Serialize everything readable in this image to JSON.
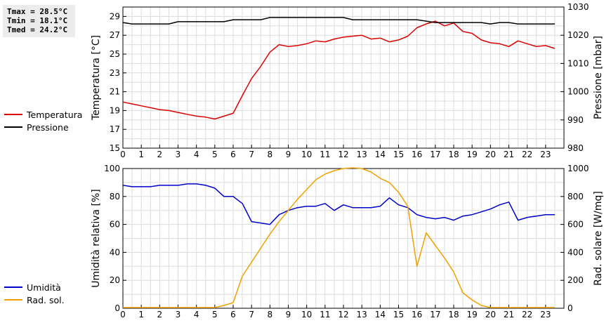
{
  "stats": {
    "tmax": "Tmax = 28.5°C",
    "tmin": "Tmin = 18.1°C",
    "tmed": "Tmed = 24.2°C"
  },
  "legend_top": [
    {
      "label": "Temperatura",
      "color": "#dd0000"
    },
    {
      "label": "Pressione",
      "color": "#000000"
    }
  ],
  "legend_bottom": [
    {
      "label": "Umidità",
      "color": "#0000cc"
    },
    {
      "label": "Rad. sol.",
      "color": "#f0a000"
    }
  ],
  "chart_data": [
    {
      "type": "line",
      "xlabel": "",
      "xlim": [
        0,
        24
      ],
      "xticks": [
        0,
        1,
        2,
        3,
        4,
        5,
        6,
        7,
        8,
        9,
        10,
        11,
        12,
        13,
        14,
        15,
        16,
        17,
        18,
        19,
        20,
        21,
        22,
        23
      ],
      "ylabel_left": "Temperatura [°C]",
      "ylim_left": [
        15,
        30
      ],
      "yticks_left": [
        15,
        17,
        19,
        21,
        23,
        25,
        27,
        29
      ],
      "ylabel_right": "Pressione [mbar]",
      "ylim_right": [
        980,
        1030
      ],
      "yticks_right": [
        980,
        990,
        1000,
        1010,
        1020,
        1030
      ],
      "grid": true,
      "series": [
        {
          "name": "Temperatura",
          "color": "#dd0000",
          "axis": "left",
          "x": [
            0,
            0.5,
            1,
            1.5,
            2,
            2.5,
            3,
            3.5,
            4,
            4.5,
            5,
            5.5,
            6,
            6.5,
            7,
            7.5,
            8,
            8.5,
            9,
            9.5,
            10,
            10.5,
            11,
            11.5,
            12,
            12.5,
            13,
            13.5,
            14,
            14.5,
            15,
            15.5,
            16,
            16.5,
            17,
            17.5,
            18,
            18.5,
            19,
            19.5,
            20,
            20.5,
            21,
            21.5,
            22,
            22.5,
            23,
            23.5
          ],
          "values": [
            19.9,
            19.7,
            19.5,
            19.3,
            19.1,
            19.0,
            18.8,
            18.6,
            18.4,
            18.3,
            18.1,
            18.4,
            18.7,
            20.6,
            22.4,
            23.7,
            25.2,
            26.0,
            25.8,
            25.9,
            26.1,
            26.4,
            26.3,
            26.6,
            26.8,
            26.9,
            27.0,
            26.6,
            26.7,
            26.3,
            26.5,
            26.9,
            27.8,
            28.2,
            28.5,
            28.0,
            28.3,
            27.4,
            27.2,
            26.5,
            26.2,
            26.1,
            25.8,
            26.4,
            26.1,
            25.8,
            25.9,
            25.6
          ]
        },
        {
          "name": "Pressione",
          "color": "#000000",
          "axis": "right",
          "x": [
            0,
            0.5,
            1,
            1.5,
            2,
            2.5,
            3,
            3.5,
            4,
            4.5,
            5,
            5.5,
            6,
            6.5,
            7,
            7.5,
            8,
            8.5,
            9,
            9.5,
            10,
            10.5,
            11,
            11.5,
            12,
            12.5,
            13,
            13.5,
            14,
            14.5,
            15,
            15.5,
            16,
            16.5,
            17,
            17.5,
            18,
            18.5,
            19,
            19.5,
            20,
            20.5,
            21,
            21.5,
            22,
            22.5,
            23,
            23.5
          ],
          "values": [
            1024.5,
            1024,
            1024,
            1024,
            1024,
            1024,
            1024.8,
            1024.8,
            1024.8,
            1024.8,
            1024.8,
            1024.8,
            1025.5,
            1025.5,
            1025.5,
            1025.5,
            1026.3,
            1026.3,
            1026.3,
            1026.3,
            1026.3,
            1026.3,
            1026.3,
            1026.3,
            1026.3,
            1025.5,
            1025.5,
            1025.5,
            1025.5,
            1025.5,
            1025.5,
            1025.5,
            1025.5,
            1025,
            1024.5,
            1024.5,
            1024.5,
            1024.5,
            1024.5,
            1024.5,
            1024,
            1024.5,
            1024.5,
            1024,
            1024,
            1024,
            1024,
            1024
          ]
        }
      ]
    },
    {
      "type": "line",
      "xlabel": "",
      "xlim": [
        0,
        24
      ],
      "xticks": [
        0,
        1,
        2,
        3,
        4,
        5,
        6,
        7,
        8,
        9,
        10,
        11,
        12,
        13,
        14,
        15,
        16,
        17,
        18,
        19,
        20,
        21,
        22,
        23
      ],
      "ylabel_left": "Umidità relativa [%]",
      "ylim_left": [
        0,
        100
      ],
      "yticks_left": [
        0,
        20,
        40,
        60,
        80,
        100
      ],
      "ylabel_right": "Rad. solare [W/mq]",
      "ylim_right": [
        0,
        1000
      ],
      "yticks_right": [
        0,
        200,
        400,
        600,
        800,
        1000
      ],
      "grid": true,
      "series": [
        {
          "name": "Umidità",
          "color": "#0000cc",
          "axis": "left",
          "x": [
            0,
            0.5,
            1,
            1.5,
            2,
            2.5,
            3,
            3.5,
            4,
            4.5,
            5,
            5.5,
            6,
            6.5,
            7,
            7.5,
            8,
            8.5,
            9,
            9.5,
            10,
            10.5,
            11,
            11.5,
            12,
            12.5,
            13,
            13.5,
            14,
            14.5,
            15,
            15.5,
            16,
            16.5,
            17,
            17.5,
            18,
            18.5,
            19,
            19.5,
            20,
            20.5,
            21,
            21.5,
            22,
            22.5,
            23,
            23.5
          ],
          "values": [
            88,
            87,
            87,
            87,
            88,
            88,
            88,
            89,
            89,
            88,
            86,
            80,
            80,
            75,
            62,
            61,
            60,
            67,
            70,
            72,
            73,
            73,
            75,
            70,
            74,
            72,
            72,
            72,
            73,
            79,
            74,
            72,
            67,
            65,
            64,
            65,
            63,
            66,
            67,
            69,
            71,
            74,
            76,
            63,
            65,
            66,
            67,
            67
          ]
        },
        {
          "name": "Rad. sol.",
          "color": "#f0a000",
          "axis": "right",
          "x": [
            0,
            0.5,
            1,
            1.5,
            2,
            2.5,
            3,
            3.5,
            4,
            4.5,
            5,
            5.5,
            6,
            6.5,
            7,
            7.5,
            8,
            8.5,
            9,
            9.5,
            10,
            10.5,
            11,
            11.5,
            12,
            12.5,
            13,
            13.5,
            14,
            14.5,
            15,
            15.5,
            16,
            16.5,
            17,
            17.5,
            18,
            18.5,
            19,
            19.5,
            20,
            20.5,
            21,
            21.5,
            22,
            22.5,
            23,
            23.5
          ],
          "values": [
            5,
            5,
            5,
            5,
            5,
            5,
            5,
            5,
            5,
            5,
            5,
            20,
            40,
            230,
            330,
            430,
            530,
            620,
            700,
            780,
            850,
            920,
            960,
            985,
            1000,
            1005,
            1000,
            975,
            930,
            900,
            830,
            730,
            300,
            540,
            450,
            360,
            260,
            110,
            60,
            20,
            5,
            5,
            5,
            5,
            5,
            5,
            5,
            5
          ]
        }
      ]
    }
  ]
}
